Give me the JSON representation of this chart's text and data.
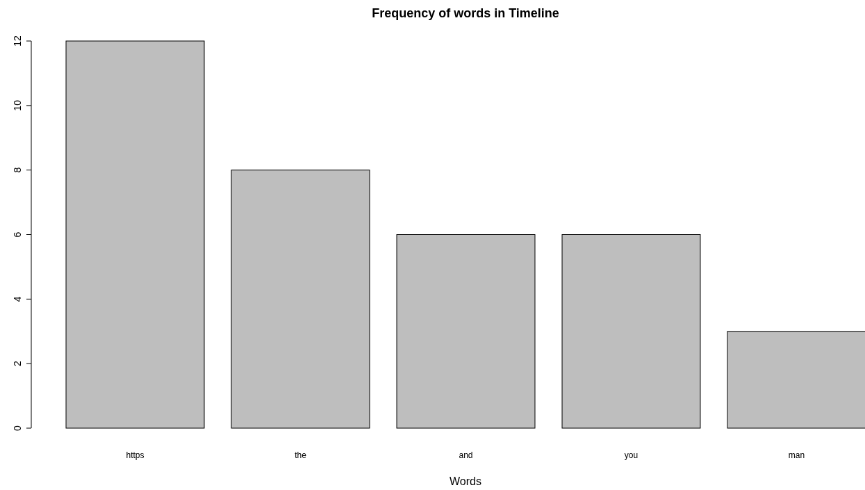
{
  "chart_data": {
    "type": "bar",
    "title": "Frequency of words in Timeline",
    "xlabel": "Words",
    "categories": [
      "https",
      "the",
      "and",
      "you",
      "man"
    ],
    "values": [
      12,
      8,
      6,
      6,
      3
    ],
    "color": "#bebebe",
    "ylim": [
      0,
      12
    ],
    "yticks": [
      0,
      2,
      4,
      6,
      8,
      10,
      12
    ]
  }
}
